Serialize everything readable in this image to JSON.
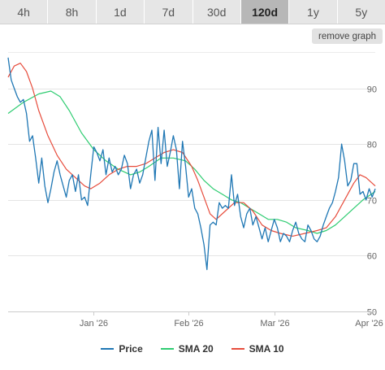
{
  "tabs": [
    {
      "label": "4h",
      "active": false
    },
    {
      "label": "8h",
      "active": false
    },
    {
      "label": "1d",
      "active": false
    },
    {
      "label": "7d",
      "active": false
    },
    {
      "label": "30d",
      "active": false
    },
    {
      "label": "120d",
      "active": true
    },
    {
      "label": "1y",
      "active": false
    },
    {
      "label": "5y",
      "active": false
    }
  ],
  "remove_graph_label": "remove graph",
  "chart_data": {
    "type": "line",
    "title": "",
    "xlabel": "",
    "ylabel": "",
    "ylim": [
      50,
      100
    ],
    "yticks": [
      50,
      60,
      70,
      80,
      90
    ],
    "xlim": [
      "2025-12-04",
      "2026-04-03"
    ],
    "xticks": [
      {
        "date": "2026-01-01",
        "label": "Jan '26"
      },
      {
        "date": "2026-02-01",
        "label": "Feb '26"
      },
      {
        "date": "2026-03-01",
        "label": "Mar '26"
      },
      {
        "date": "2026-04-01",
        "label": "Apr '26"
      }
    ],
    "grid": true,
    "legend_position": "bottom",
    "series": [
      {
        "name": "Price",
        "color": "#1f77b4",
        "points": [
          [
            "2025-12-04",
            95.5
          ],
          [
            "2025-12-05",
            91.5
          ],
          [
            "2025-12-06",
            90
          ],
          [
            "2025-12-07",
            88.5
          ],
          [
            "2025-12-08",
            87.5
          ],
          [
            "2025-12-09",
            88
          ],
          [
            "2025-12-10",
            85.5
          ],
          [
            "2025-12-11",
            80.5
          ],
          [
            "2025-12-12",
            81.5
          ],
          [
            "2025-12-13",
            77.5
          ],
          [
            "2025-12-14",
            73
          ],
          [
            "2025-12-15",
            77.5
          ],
          [
            "2025-12-16",
            72.5
          ],
          [
            "2025-12-17",
            69.5
          ],
          [
            "2025-12-18",
            72
          ],
          [
            "2025-12-19",
            75
          ],
          [
            "2025-12-20",
            77
          ],
          [
            "2025-12-21",
            74.5
          ],
          [
            "2025-12-22",
            72.5
          ],
          [
            "2025-12-23",
            70.5
          ],
          [
            "2025-12-24",
            73.5
          ],
          [
            "2025-12-25",
            74.5
          ],
          [
            "2025-12-26",
            71.5
          ],
          [
            "2025-12-27",
            74.5
          ],
          [
            "2025-12-28",
            70
          ],
          [
            "2025-12-29",
            70.5
          ],
          [
            "2025-12-30",
            69
          ],
          [
            "2025-12-31",
            74.5
          ],
          [
            "2026-01-01",
            79.5
          ],
          [
            "2026-01-02",
            78.5
          ],
          [
            "2026-01-03",
            77
          ],
          [
            "2026-01-04",
            79
          ],
          [
            "2026-01-05",
            74.5
          ],
          [
            "2026-01-06",
            77.5
          ],
          [
            "2026-01-07",
            75
          ],
          [
            "2026-01-08",
            76
          ],
          [
            "2026-01-09",
            74.5
          ],
          [
            "2026-01-10",
            75.5
          ],
          [
            "2026-01-11",
            78
          ],
          [
            "2026-01-12",
            76.5
          ],
          [
            "2026-01-13",
            72
          ],
          [
            "2026-01-14",
            74.5
          ],
          [
            "2026-01-15",
            75.5
          ],
          [
            "2026-01-16",
            73
          ],
          [
            "2026-01-17",
            74.5
          ],
          [
            "2026-01-18",
            77.5
          ],
          [
            "2026-01-19",
            80.5
          ],
          [
            "2026-01-20",
            82.5
          ],
          [
            "2026-01-21",
            73.5
          ],
          [
            "2026-01-22",
            83
          ],
          [
            "2026-01-23",
            76.5
          ],
          [
            "2026-01-24",
            82.5
          ],
          [
            "2026-01-25",
            76
          ],
          [
            "2026-01-26",
            78.5
          ],
          [
            "2026-01-27",
            81.5
          ],
          [
            "2026-01-28",
            79
          ],
          [
            "2026-01-29",
            72
          ],
          [
            "2026-01-30",
            80.5
          ],
          [
            "2026-01-31",
            76
          ],
          [
            "2026-02-01",
            70.5
          ],
          [
            "2026-02-02",
            72
          ],
          [
            "2026-02-03",
            68.5
          ],
          [
            "2026-02-04",
            67.5
          ],
          [
            "2026-02-05",
            65
          ],
          [
            "2026-02-06",
            62
          ],
          [
            "2026-02-07",
            57.5
          ],
          [
            "2026-02-08",
            65.5
          ],
          [
            "2026-02-09",
            66
          ],
          [
            "2026-02-10",
            65.5
          ],
          [
            "2026-02-11",
            69.5
          ],
          [
            "2026-02-12",
            68.5
          ],
          [
            "2026-02-13",
            69
          ],
          [
            "2026-02-14",
            68.5
          ],
          [
            "2026-02-15",
            74.5
          ],
          [
            "2026-02-16",
            69
          ],
          [
            "2026-02-17",
            71
          ],
          [
            "2026-02-18",
            67
          ],
          [
            "2026-02-19",
            65
          ],
          [
            "2026-02-20",
            67.5
          ],
          [
            "2026-02-21",
            68.5
          ],
          [
            "2026-02-22",
            65.5
          ],
          [
            "2026-02-23",
            67
          ],
          [
            "2026-02-24",
            65
          ],
          [
            "2026-02-25",
            63
          ],
          [
            "2026-02-26",
            65
          ],
          [
            "2026-02-27",
            62.5
          ],
          [
            "2026-02-28",
            64.5
          ],
          [
            "2026-03-01",
            66.5
          ],
          [
            "2026-03-02",
            65
          ],
          [
            "2026-03-03",
            62.5
          ],
          [
            "2026-03-04",
            64
          ],
          [
            "2026-03-05",
            63.5
          ],
          [
            "2026-03-06",
            62.5
          ],
          [
            "2026-03-07",
            64.5
          ],
          [
            "2026-03-08",
            66
          ],
          [
            "2026-03-09",
            64
          ],
          [
            "2026-03-10",
            63
          ],
          [
            "2026-03-11",
            62.5
          ],
          [
            "2026-03-12",
            65.5
          ],
          [
            "2026-03-13",
            64.5
          ],
          [
            "2026-03-14",
            63
          ],
          [
            "2026-03-15",
            62.5
          ],
          [
            "2026-03-16",
            63.5
          ],
          [
            "2026-03-17",
            65.5
          ],
          [
            "2026-03-18",
            67
          ],
          [
            "2026-03-19",
            68.5
          ],
          [
            "2026-03-20",
            69.5
          ],
          [
            "2026-03-21",
            71.5
          ],
          [
            "2026-03-22",
            74
          ],
          [
            "2026-03-23",
            80
          ],
          [
            "2026-03-24",
            77
          ],
          [
            "2026-03-25",
            72.5
          ],
          [
            "2026-03-26",
            73.5
          ],
          [
            "2026-03-27",
            76.5
          ],
          [
            "2026-03-28",
            76.5
          ],
          [
            "2026-03-29",
            71
          ],
          [
            "2026-03-30",
            71.5
          ],
          [
            "2026-03-31",
            70
          ],
          [
            "2026-04-01",
            72
          ],
          [
            "2026-04-02",
            70.5
          ],
          [
            "2026-04-03",
            72
          ]
        ]
      },
      {
        "name": "SMA 20",
        "color": "#2ecc71",
        "points": [
          [
            "2025-12-04",
            85.5
          ],
          [
            "2025-12-09",
            87.5
          ],
          [
            "2025-12-14",
            89
          ],
          [
            "2025-12-18",
            89.5
          ],
          [
            "2025-12-21",
            88.5
          ],
          [
            "2025-12-24",
            86
          ],
          [
            "2025-12-28",
            82
          ],
          [
            "2026-01-01",
            79
          ],
          [
            "2026-01-05",
            77
          ],
          [
            "2026-01-09",
            75.5
          ],
          [
            "2026-01-13",
            74.5
          ],
          [
            "2026-01-16",
            75
          ],
          [
            "2026-01-19",
            76
          ],
          [
            "2026-01-23",
            77.5
          ],
          [
            "2026-01-27",
            77.5
          ],
          [
            "2026-01-31",
            77
          ],
          [
            "2026-02-03",
            75.5
          ],
          [
            "2026-02-06",
            73.5
          ],
          [
            "2026-02-09",
            72
          ],
          [
            "2026-02-12",
            71
          ],
          [
            "2026-02-15",
            70
          ],
          [
            "2026-02-18",
            69.5
          ],
          [
            "2026-02-21",
            68.5
          ],
          [
            "2026-02-24",
            67.5
          ],
          [
            "2026-02-27",
            66.5
          ],
          [
            "2026-03-02",
            66.5
          ],
          [
            "2026-03-05",
            66
          ],
          [
            "2026-03-08",
            65
          ],
          [
            "2026-03-12",
            64.5
          ],
          [
            "2026-03-15",
            64
          ],
          [
            "2026-03-18",
            64.5
          ],
          [
            "2026-03-21",
            65.5
          ],
          [
            "2026-03-24",
            67
          ],
          [
            "2026-03-27",
            68.5
          ],
          [
            "2026-03-30",
            70
          ],
          [
            "2026-04-03",
            71.5
          ]
        ]
      },
      {
        "name": "SMA 10",
        "color": "#e74c3c",
        "points": [
          [
            "2025-12-04",
            92
          ],
          [
            "2025-12-06",
            94
          ],
          [
            "2025-12-08",
            94.5
          ],
          [
            "2025-12-10",
            93
          ],
          [
            "2025-12-12",
            90
          ],
          [
            "2025-12-14",
            86
          ],
          [
            "2025-12-17",
            81.5
          ],
          [
            "2025-12-20",
            78
          ],
          [
            "2025-12-23",
            75.5
          ],
          [
            "2025-12-26",
            74
          ],
          [
            "2025-12-29",
            72.5
          ],
          [
            "2025-12-31",
            72
          ],
          [
            "2026-01-03",
            73
          ],
          [
            "2026-01-06",
            74.5
          ],
          [
            "2026-01-09",
            75.5
          ],
          [
            "2026-01-12",
            76
          ],
          [
            "2026-01-15",
            76
          ],
          [
            "2026-01-18",
            76.5
          ],
          [
            "2026-01-21",
            77.5
          ],
          [
            "2026-01-24",
            78.5
          ],
          [
            "2026-01-27",
            79
          ],
          [
            "2026-01-30",
            78.5
          ],
          [
            "2026-02-02",
            76
          ],
          [
            "2026-02-04",
            73.5
          ],
          [
            "2026-02-06",
            70.5
          ],
          [
            "2026-02-08",
            67.5
          ],
          [
            "2026-02-10",
            66.5
          ],
          [
            "2026-02-13",
            68
          ],
          [
            "2026-02-16",
            69.5
          ],
          [
            "2026-02-19",
            69.5
          ],
          [
            "2026-02-22",
            68
          ],
          [
            "2026-02-25",
            65.5
          ],
          [
            "2026-02-28",
            64.5
          ],
          [
            "2026-03-03",
            64
          ],
          [
            "2026-03-07",
            63.5
          ],
          [
            "2026-03-11",
            64
          ],
          [
            "2026-03-15",
            64.5
          ],
          [
            "2026-03-18",
            65
          ],
          [
            "2026-03-21",
            67
          ],
          [
            "2026-03-24",
            70
          ],
          [
            "2026-03-27",
            73
          ],
          [
            "2026-03-29",
            74.5
          ],
          [
            "2026-03-31",
            74
          ],
          [
            "2026-04-03",
            72.5
          ]
        ]
      }
    ]
  }
}
